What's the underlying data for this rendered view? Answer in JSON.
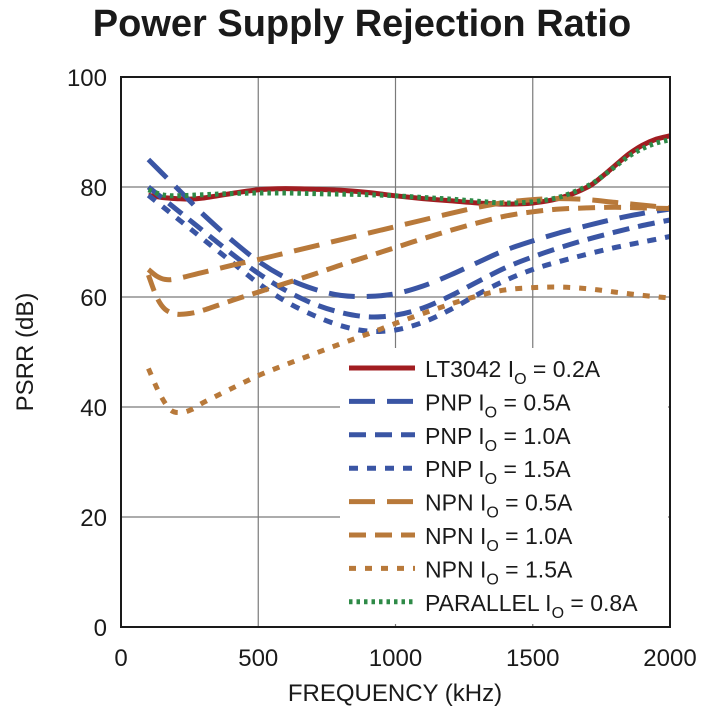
{
  "chart_data": {
    "type": "line",
    "title": "Power Supply Rejection Ratio",
    "xlabel": "FREQUENCY (kHz)",
    "ylabel": "PSRR (dB)",
    "xlim": [
      0,
      2000
    ],
    "ylim": [
      0,
      100
    ],
    "xticks": [
      0,
      500,
      1000,
      1500,
      2000
    ],
    "yticks": [
      0,
      20,
      40,
      60,
      80,
      100
    ],
    "grid": true,
    "legend_position": "bottom-right",
    "series": [
      {
        "name": "LT3042 I",
        "sub": "O",
        "suffix": " = 0.2A",
        "color": "#a11d21",
        "style": "solid",
        "x": [
          100,
          150,
          200,
          250,
          300,
          400,
          500,
          600,
          700,
          800,
          900,
          1000,
          1100,
          1200,
          1300,
          1400,
          1500,
          1600,
          1700,
          1750,
          1800,
          1850,
          1900,
          1950,
          2000
        ],
        "y": [
          78.5,
          78.1,
          77.9,
          77.8,
          78.0,
          78.8,
          79.5,
          79.7,
          79.6,
          79.4,
          79.0,
          78.4,
          77.9,
          77.5,
          77.1,
          76.9,
          77.1,
          78.0,
          80.0,
          81.8,
          83.9,
          86.0,
          87.6,
          88.7,
          89.3
        ]
      },
      {
        "name": "PNP I",
        "sub": "O",
        "suffix": " = 0.5A",
        "color": "#3a55a4",
        "style": "long-dash",
        "x": [
          100,
          150,
          200,
          250,
          300,
          400,
          500,
          600,
          700,
          800,
          900,
          1000,
          1100,
          1200,
          1300,
          1400,
          1500,
          1600,
          1700,
          1800,
          1900,
          2000
        ],
        "y": [
          85,
          82.5,
          80,
          77.5,
          75,
          70.5,
          66.5,
          63.5,
          61.5,
          60.3,
          60.1,
          60.6,
          62.0,
          64.0,
          66.3,
          68.5,
          70.2,
          71.7,
          73.0,
          74.2,
          75.2,
          76.0
        ]
      },
      {
        "name": "PNP I",
        "sub": "O",
        "suffix": " = 1.0A",
        "color": "#3a55a4",
        "style": "dash",
        "x": [
          100,
          150,
          200,
          250,
          300,
          400,
          500,
          600,
          700,
          800,
          900,
          1000,
          1100,
          1200,
          1300,
          1400,
          1500,
          1600,
          1700,
          1800,
          1900,
          2000
        ],
        "y": [
          80,
          78,
          76,
          74,
          72,
          68,
          64.3,
          61.2,
          58.8,
          57.2,
          56.4,
          56.7,
          58.0,
          60.2,
          62.8,
          65.3,
          67.3,
          69.0,
          70.5,
          71.8,
          73.0,
          74.0
        ]
      },
      {
        "name": "PNP I",
        "sub": "O",
        "suffix": " = 1.5A",
        "color": "#3a55a4",
        "style": "dot-dash",
        "x": [
          100,
          150,
          200,
          250,
          300,
          400,
          500,
          600,
          700,
          800,
          900,
          1000,
          1100,
          1200,
          1300,
          1400,
          1500,
          1600,
          1700,
          1800,
          1900,
          2000
        ],
        "y": [
          78.5,
          76.5,
          74.5,
          72.5,
          70.5,
          66.5,
          62.5,
          59.2,
          56.7,
          54.8,
          53.8,
          54.0,
          55.4,
          57.7,
          60.5,
          63.0,
          65.0,
          66.5,
          67.8,
          69.0,
          70.0,
          71.0
        ]
      },
      {
        "name": "NPN I",
        "sub": "O",
        "suffix": " = 0.5A",
        "color": "#b8793a",
        "style": "long-dash",
        "x": [
          100,
          130,
          160,
          200,
          300,
          400,
          500,
          600,
          700,
          800,
          900,
          1000,
          1100,
          1200,
          1300,
          1400,
          1500,
          1600,
          1700,
          1800,
          1900,
          2000
        ],
        "y": [
          65,
          63.8,
          63.2,
          63.3,
          64.5,
          65.7,
          66.8,
          68.0,
          69.2,
          70.4,
          71.6,
          72.8,
          74.0,
          75.2,
          76.3,
          77.2,
          77.7,
          77.9,
          77.7,
          77.2,
          76.7,
          76.2
        ]
      },
      {
        "name": "NPN I",
        "sub": "O",
        "suffix": " = 1.0A",
        "color": "#b8793a",
        "style": "dash",
        "x": [
          100,
          130,
          160,
          200,
          250,
          300,
          400,
          500,
          600,
          700,
          800,
          900,
          1000,
          1100,
          1200,
          1300,
          1400,
          1500,
          1600,
          1700,
          1800,
          1900,
          2000
        ],
        "y": [
          64,
          60,
          57.8,
          56.9,
          57.0,
          57.6,
          59.3,
          60.9,
          62.5,
          64.1,
          65.8,
          67.4,
          69.0,
          70.6,
          72.1,
          73.5,
          74.7,
          75.5,
          76.0,
          76.2,
          76.3,
          76.2,
          76.1
        ]
      },
      {
        "name": "NPN I",
        "sub": "O",
        "suffix": " = 1.5A",
        "color": "#b8793a",
        "style": "dot",
        "x": [
          100,
          140,
          180,
          220,
          260,
          300,
          400,
          500,
          600,
          700,
          800,
          900,
          1000,
          1100,
          1200,
          1300,
          1400,
          1500,
          1600,
          1700,
          1800,
          1900,
          2000
        ],
        "y": [
          47,
          42.5,
          39.5,
          39.0,
          39.6,
          40.8,
          43.3,
          45.7,
          47.7,
          49.6,
          51.5,
          53.3,
          55.2,
          57.0,
          58.7,
          60.2,
          61.3,
          61.7,
          61.8,
          61.5,
          60.9,
          60.3,
          59.8
        ]
      },
      {
        "name": "PARALLEL I",
        "sub": "O",
        "suffix": " = 0.8A",
        "color": "#2e8a47",
        "style": "fine-dot",
        "x": [
          100,
          150,
          200,
          300,
          400,
          500,
          600,
          700,
          800,
          900,
          1000,
          1100,
          1200,
          1300,
          1400,
          1500,
          1600,
          1700,
          1750,
          1800,
          1850,
          1900,
          1950,
          2000
        ],
        "y": [
          79.5,
          78.6,
          78.4,
          78.6,
          78.8,
          78.9,
          78.9,
          78.8,
          78.7,
          78.6,
          78.4,
          78.1,
          77.8,
          77.4,
          77.1,
          77.3,
          78.2,
          80.2,
          81.8,
          83.7,
          85.6,
          87.0,
          88.0,
          88.6
        ]
      }
    ]
  }
}
